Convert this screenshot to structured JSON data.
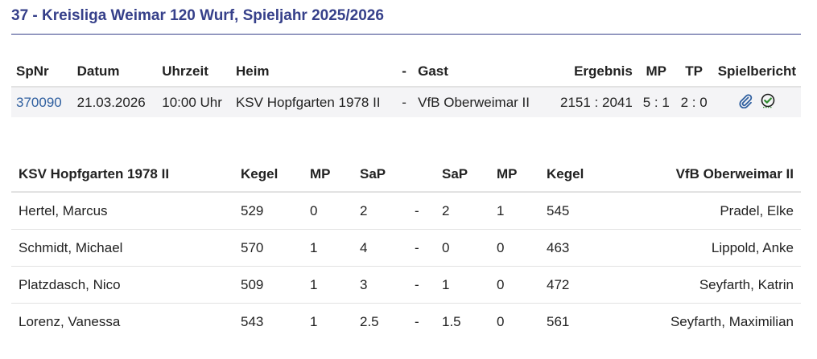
{
  "title": "37 - Kreisliga Weimar 120 Wurf, Spieljahr 2025/2026",
  "match": {
    "headers": {
      "spnr": "SpNr",
      "datum": "Datum",
      "uhrzeit": "Uhrzeit",
      "heim": "Heim",
      "dash": "-",
      "gast": "Gast",
      "ergebnis": "Ergebnis",
      "mp": "MP",
      "tp": "TP",
      "spielbericht": "Spielbericht"
    },
    "row": {
      "spnr": "370090",
      "datum": "21.03.2026",
      "uhrzeit": "10:00 Uhr",
      "heim": "KSV Hopfgarten 1978 II",
      "dash": "-",
      "gast": "VfB Oberweimar II",
      "ergebnis": "2151 : 2041",
      "mp": "5 : 1",
      "tp": "2 : 0",
      "icons": [
        "paperclip-icon",
        "check-circle-icon"
      ]
    }
  },
  "players": {
    "headers": {
      "home_team": "KSV Hopfgarten 1978 II",
      "kegel_home": "Kegel",
      "mp_home": "MP",
      "sap_home": "SaP",
      "sap_guest": "SaP",
      "mp_guest": "MP",
      "kegel_guest": "Kegel",
      "guest_team": "VfB Oberweimar II"
    },
    "rows": [
      {
        "home": "Hertel, Marcus",
        "kegel_home": "529",
        "mp_home": "0",
        "sap_home": "2",
        "dash": "-",
        "sap_guest": "2",
        "mp_guest": "1",
        "kegel_guest": "545",
        "guest": "Pradel, Elke"
      },
      {
        "home": "Schmidt, Michael",
        "kegel_home": "570",
        "mp_home": "1",
        "sap_home": "4",
        "dash": "-",
        "sap_guest": "0",
        "mp_guest": "0",
        "kegel_guest": "463",
        "guest": "Lippold, Anke"
      },
      {
        "home": "Platzdasch, Nico",
        "kegel_home": "509",
        "mp_home": "1",
        "sap_home": "3",
        "dash": "-",
        "sap_guest": "1",
        "mp_guest": "0",
        "kegel_guest": "472",
        "guest": "Seyfarth, Katrin"
      },
      {
        "home": "Lorenz, Vanessa",
        "kegel_home": "543",
        "mp_home": "1",
        "sap_home": "2.5",
        "dash": "-",
        "sap_guest": "1.5",
        "mp_guest": "0",
        "kegel_guest": "561",
        "guest": "Seyfarth, Maximilian"
      }
    ]
  },
  "colors": {
    "title": "#36408a",
    "link": "#2f5f9f",
    "check": "#2e8b2e",
    "row_bg": "#f4f4f6"
  }
}
